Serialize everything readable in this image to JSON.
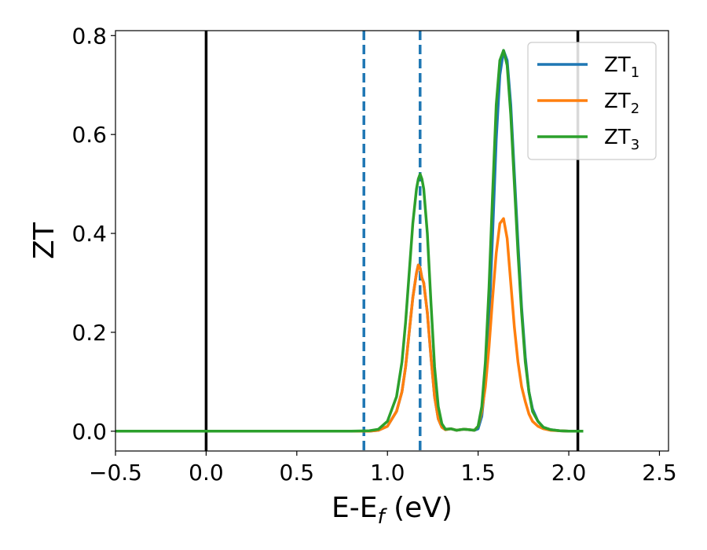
{
  "chart_data": {
    "type": "line",
    "xlabel_main": "E-E",
    "xlabel_sub": "f",
    "xlabel_unit": " (eV)",
    "ylabel": "ZT",
    "xlim": [
      -0.5,
      2.55
    ],
    "ylim": [
      -0.04,
      0.81
    ],
    "xticks": [
      -0.5,
      0.0,
      0.5,
      1.0,
      1.5,
      2.0,
      2.5
    ],
    "xtick_labels": [
      "−0.5",
      "0.0",
      "0.5",
      "1.0",
      "1.5",
      "2.0",
      "2.5"
    ],
    "yticks": [
      0.0,
      0.2,
      0.4,
      0.6,
      0.8
    ],
    "ytick_labels": [
      "0.0",
      "0.2",
      "0.4",
      "0.6",
      "0.8"
    ],
    "grid": false,
    "legend_placement": "top-right",
    "vertical_lines": [
      {
        "x": 0.0,
        "style": "solid",
        "color": "#000000"
      },
      {
        "x": 2.05,
        "style": "solid",
        "color": "#000000"
      },
      {
        "x": 0.87,
        "style": "dashed",
        "color": "#1f77b4"
      },
      {
        "x": 1.18,
        "style": "dashed",
        "color": "#1f77b4"
      }
    ],
    "series": [
      {
        "name_main": "ZT",
        "name_sub": "1",
        "color": "#1f77b4",
        "x": [
          -0.5,
          0.8,
          0.9,
          0.95,
          1.0,
          1.05,
          1.08,
          1.1,
          1.12,
          1.14,
          1.16,
          1.17,
          1.18,
          1.19,
          1.2,
          1.22,
          1.24,
          1.26,
          1.28,
          1.3,
          1.32,
          1.35,
          1.38,
          1.42,
          1.45,
          1.48,
          1.5,
          1.52,
          1.54,
          1.56,
          1.58,
          1.6,
          1.62,
          1.64,
          1.66,
          1.68,
          1.7,
          1.72,
          1.74,
          1.76,
          1.78,
          1.8,
          1.83,
          1.86,
          1.9,
          1.95,
          2.0,
          2.08
        ],
        "y": [
          0,
          0,
          0,
          0.002,
          0.01,
          0.04,
          0.08,
          0.13,
          0.2,
          0.27,
          0.32,
          0.336,
          0.33,
          0.31,
          0.3,
          0.24,
          0.15,
          0.07,
          0.025,
          0.008,
          0.003,
          0.005,
          0.002,
          0.004,
          0.003,
          0.002,
          0.005,
          0.03,
          0.1,
          0.22,
          0.4,
          0.59,
          0.72,
          0.77,
          0.75,
          0.66,
          0.52,
          0.38,
          0.25,
          0.15,
          0.08,
          0.045,
          0.02,
          0.008,
          0.003,
          0.001,
          0,
          0
        ]
      },
      {
        "name_main": "ZT",
        "name_sub": "2",
        "color": "#ff7f0e",
        "x": [
          -0.5,
          0.8,
          0.9,
          0.95,
          1.0,
          1.05,
          1.08,
          1.1,
          1.12,
          1.14,
          1.16,
          1.17,
          1.18,
          1.19,
          1.2,
          1.22,
          1.24,
          1.26,
          1.28,
          1.3,
          1.32,
          1.35,
          1.38,
          1.42,
          1.45,
          1.48,
          1.5,
          1.52,
          1.54,
          1.56,
          1.58,
          1.6,
          1.62,
          1.64,
          1.66,
          1.68,
          1.7,
          1.72,
          1.74,
          1.76,
          1.78,
          1.8,
          1.83,
          1.86,
          1.9,
          1.95,
          2.0,
          2.08
        ],
        "y": [
          0,
          0,
          0,
          0.002,
          0.01,
          0.04,
          0.08,
          0.13,
          0.2,
          0.27,
          0.32,
          0.336,
          0.33,
          0.31,
          0.3,
          0.24,
          0.15,
          0.07,
          0.025,
          0.008,
          0.003,
          0.005,
          0.002,
          0.004,
          0.003,
          0.002,
          0.01,
          0.04,
          0.09,
          0.17,
          0.27,
          0.36,
          0.42,
          0.43,
          0.39,
          0.3,
          0.21,
          0.14,
          0.09,
          0.06,
          0.035,
          0.02,
          0.01,
          0.005,
          0.002,
          0.001,
          0,
          0
        ]
      },
      {
        "name_main": "ZT",
        "name_sub": "3",
        "color": "#2ca02c",
        "x": [
          -0.5,
          0.8,
          0.9,
          0.95,
          1.0,
          1.05,
          1.08,
          1.1,
          1.12,
          1.14,
          1.16,
          1.17,
          1.18,
          1.19,
          1.2,
          1.22,
          1.24,
          1.26,
          1.28,
          1.3,
          1.32,
          1.35,
          1.38,
          1.42,
          1.45,
          1.48,
          1.5,
          1.52,
          1.54,
          1.56,
          1.58,
          1.6,
          1.62,
          1.64,
          1.66,
          1.68,
          1.7,
          1.72,
          1.74,
          1.76,
          1.78,
          1.8,
          1.83,
          1.86,
          1.9,
          1.95,
          2.0,
          2.08
        ],
        "y": [
          0,
          0,
          0.001,
          0.004,
          0.02,
          0.07,
          0.14,
          0.22,
          0.32,
          0.42,
          0.49,
          0.51,
          0.52,
          0.51,
          0.49,
          0.4,
          0.26,
          0.13,
          0.05,
          0.015,
          0.004,
          0.005,
          0.002,
          0.004,
          0.003,
          0.002,
          0.01,
          0.05,
          0.14,
          0.29,
          0.48,
          0.66,
          0.75,
          0.77,
          0.74,
          0.64,
          0.5,
          0.36,
          0.24,
          0.14,
          0.08,
          0.04,
          0.02,
          0.008,
          0.003,
          0.001,
          0,
          0
        ]
      }
    ]
  }
}
